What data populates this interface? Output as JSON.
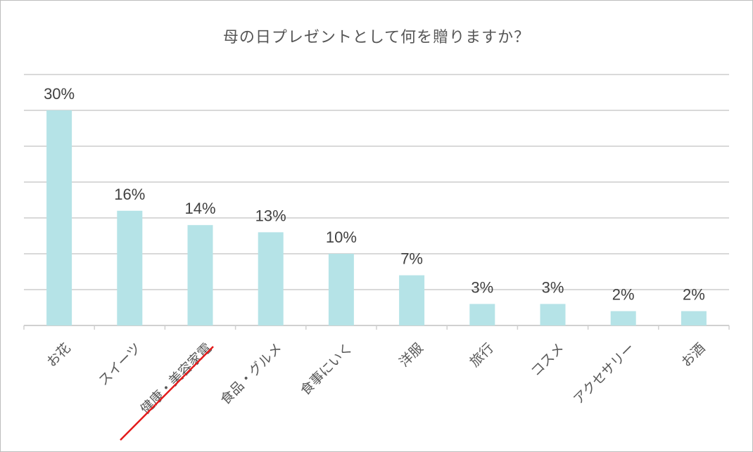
{
  "chart_data": {
    "type": "bar",
    "title": "母の日プレゼントとして何を贈りますか？",
    "categories": [
      "お花",
      "スイーツ",
      "健康・美容家電",
      "食品・グルメ",
      "食事にいく",
      "洋服",
      "旅行",
      "コスメ",
      "アクセサリー",
      "お酒"
    ],
    "values": [
      30,
      16,
      14,
      13,
      10,
      7,
      3,
      3,
      2,
      2
    ],
    "value_labels": [
      "30%",
      "16%",
      "14%",
      "13%",
      "10%",
      "7%",
      "3%",
      "3%",
      "2%",
      "2%"
    ],
    "highlighted_category": "健康・美容家電",
    "xlabel": "",
    "ylabel": "",
    "ylim": [
      0,
      35
    ],
    "grid": true,
    "bar_color": "#b5e3e7",
    "highlight_color": "#e31b1b"
  }
}
